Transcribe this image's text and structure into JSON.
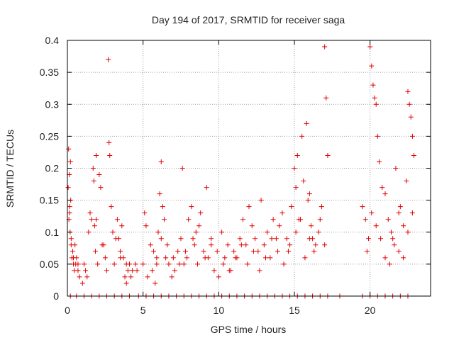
{
  "chart_data": {
    "type": "scatter",
    "title": "Day 194 of 2017, SRMTID for receiver saga",
    "xlabel": "GPS time / hours",
    "ylabel": "SRMTID / TECUs",
    "xlim": [
      0,
      24
    ],
    "ylim": [
      0,
      0.4
    ],
    "x_ticks": [
      0,
      5,
      10,
      15,
      20
    ],
    "x_tick_labels": [
      "0",
      "5",
      "10",
      "15",
      "20"
    ],
    "y_ticks": [
      0,
      0.05,
      0.1,
      0.15,
      0.2,
      0.25,
      0.3,
      0.35,
      0.4
    ],
    "y_tick_labels": [
      "0",
      "0.05",
      "0.1",
      "0.15",
      "0.2",
      "0.25",
      "0.3",
      "0.35",
      "0.4"
    ],
    "grid": true,
    "marker": "+",
    "color": "#e00000",
    "series": [
      {
        "name": "SRMTID",
        "x": [
          0.05,
          0.08,
          0.1,
          0.12,
          0.15,
          0.18,
          0.2,
          0.22,
          0.25,
          0.3,
          0.35,
          0.4,
          0.45,
          0.5,
          0.6,
          0.7,
          0.8,
          1.0,
          1.1,
          1.2,
          1.3,
          1.5,
          1.6,
          1.7,
          1.75,
          1.8,
          1.85,
          1.9,
          2.0,
          2.1,
          2.2,
          2.3,
          2.5,
          2.7,
          2.75,
          2.8,
          2.9,
          3.0,
          3.1,
          3.3,
          3.4,
          3.5,
          3.6,
          3.7,
          3.8,
          3.9,
          4.0,
          4.1,
          4.2,
          4.5,
          4.6,
          5.0,
          5.1,
          5.2,
          5.5,
          5.6,
          5.7,
          5.8,
          5.9,
          6.0,
          6.1,
          6.2,
          6.3,
          6.4,
          6.5,
          6.7,
          6.9,
          7.1,
          7.3,
          7.5,
          7.6,
          7.7,
          7.9,
          8.0,
          8.2,
          8.4,
          8.5,
          8.6,
          8.8,
          9.0,
          9.2,
          9.3,
          9.5,
          9.7,
          10.0,
          10.2,
          10.4,
          10.6,
          10.8,
          11.0,
          11.2,
          11.4,
          11.6,
          11.8,
          12.0,
          12.2,
          12.4,
          12.6,
          12.8,
          13.0,
          13.2,
          13.4,
          13.6,
          13.8,
          14.0,
          14.2,
          14.5,
          14.6,
          14.8,
          15.0,
          15.1,
          15.2,
          15.3,
          15.5,
          15.6,
          15.8,
          15.9,
          16.0,
          16.1,
          16.2,
          16.4,
          16.6,
          16.8,
          17.0,
          17.1,
          17.2,
          19.5,
          19.7,
          19.9,
          20.0,
          20.1,
          20.2,
          20.3,
          20.4,
          20.5,
          20.6,
          20.8,
          21.0,
          21.2,
          21.4,
          21.5,
          21.7,
          21.9,
          22.0,
          22.2,
          22.4,
          22.5,
          22.6,
          22.7,
          22.8,
          22.9,
          0.15,
          0.25,
          0.4,
          0.55,
          0.7,
          1.4,
          1.9,
          2.4,
          2.6,
          3.2,
          3.5,
          3.9,
          4.3,
          5.3,
          5.9,
          6.2,
          6.6,
          7.0,
          7.4,
          7.8,
          8.3,
          8.7,
          9.1,
          9.5,
          9.9,
          10.3,
          10.7,
          11.1,
          11.5,
          11.9,
          12.3,
          12.7,
          13.1,
          13.5,
          13.9,
          14.3,
          14.7,
          15.1,
          15.4,
          15.7,
          16.0,
          16.3,
          16.7,
          17.0,
          19.8,
          20.1,
          20.4,
          20.7,
          21.0,
          21.3,
          21.6,
          21.9,
          22.2,
          22.5,
          22.8,
          0.2,
          0.6,
          1.1,
          1.6,
          2.1,
          2.6,
          3.1,
          3.6,
          4.1,
          4.7,
          5.2,
          5.7,
          6.2,
          6.7,
          7.2,
          7.7,
          8.2,
          8.7,
          9.2,
          9.7,
          10.2,
          10.7,
          11.2,
          11.7,
          12.2,
          12.7,
          13.2,
          13.7,
          14.2,
          14.7,
          15.2,
          15.7,
          16.2,
          16.7,
          17.2,
          18.0,
          19.5,
          20.0,
          20.5,
          21.0,
          21.5,
          22.0,
          22.5
        ],
        "y": [
          0.17,
          0.23,
          0.12,
          0.19,
          0.13,
          0.1,
          0.21,
          0.15,
          0.08,
          0.06,
          0.07,
          0.05,
          0.04,
          0.08,
          0.06,
          0.05,
          0.03,
          0.02,
          0.05,
          0.04,
          0.03,
          0.13,
          0.12,
          0.2,
          0.18,
          0.11,
          0.07,
          0.22,
          0.05,
          0.19,
          0.17,
          0.08,
          0.06,
          0.37,
          0.24,
          0.22,
          0.14,
          0.1,
          0.05,
          0.12,
          0.09,
          0.07,
          0.11,
          0.06,
          0.03,
          0.02,
          0.04,
          0.05,
          0.03,
          0.05,
          0.04,
          0.05,
          0.13,
          0.11,
          0.08,
          0.04,
          0.07,
          0.02,
          0.05,
          0.1,
          0.16,
          0.21,
          0.14,
          0.12,
          0.06,
          0.05,
          0.03,
          0.04,
          0.07,
          0.09,
          0.2,
          0.05,
          0.06,
          0.12,
          0.14,
          0.08,
          0.1,
          0.05,
          0.13,
          0.07,
          0.17,
          0.06,
          0.09,
          0.04,
          0.03,
          0.1,
          0.06,
          0.08,
          0.04,
          0.07,
          0.06,
          0.09,
          0.12,
          0.08,
          0.14,
          0.11,
          0.09,
          0.07,
          0.15,
          0.08,
          0.1,
          0.06,
          0.12,
          0.09,
          0.11,
          0.13,
          0.09,
          0.07,
          0.14,
          0.2,
          0.17,
          0.22,
          0.12,
          0.25,
          0.18,
          0.27,
          0.15,
          0.16,
          0.11,
          0.09,
          0.08,
          0.1,
          0.14,
          0.39,
          0.31,
          0.22,
          0.14,
          0.12,
          0.09,
          0.39,
          0.36,
          0.33,
          0.31,
          0.3,
          0.25,
          0.21,
          0.17,
          0.16,
          0.12,
          0.1,
          0.09,
          0.2,
          0.13,
          0.14,
          0.11,
          0.18,
          0.32,
          0.3,
          0.28,
          0.25,
          0.22,
          0.14,
          0.09,
          0.06,
          0.05,
          0.04,
          0.1,
          0.12,
          0.08,
          0.04,
          0.09,
          0.06,
          0.05,
          0.04,
          0.03,
          0.06,
          0.09,
          0.08,
          0.06,
          0.05,
          0.07,
          0.09,
          0.11,
          0.06,
          0.08,
          0.07,
          0.05,
          0.04,
          0.06,
          0.08,
          0.05,
          0.07,
          0.04,
          0.06,
          0.09,
          0.07,
          0.05,
          0.08,
          0.1,
          0.12,
          0.06,
          0.09,
          0.07,
          0.12,
          0.08,
          0.07,
          0.13,
          0.11,
          0.09,
          0.06,
          0.05,
          0.08,
          0.07,
          0.06,
          0.1,
          0.13,
          0.0,
          0.0,
          0.0,
          0.0,
          0.0,
          0.0,
          0.0,
          0.0,
          0.0,
          0.0,
          0.0,
          0.0,
          0.0,
          0.0,
          0.0,
          0.0,
          0.0,
          0.0,
          0.0,
          0.0,
          0.0,
          0.0,
          0.0,
          0.0,
          0.0,
          0.0,
          0.0,
          0.0,
          0.0,
          0.0,
          0.0,
          0.0,
          0.0,
          0.0,
          0.0,
          0.0,
          0.0,
          0.0,
          0.0,
          0.0,
          0.0,
          0.0,
          0.0
        ]
      }
    ]
  }
}
